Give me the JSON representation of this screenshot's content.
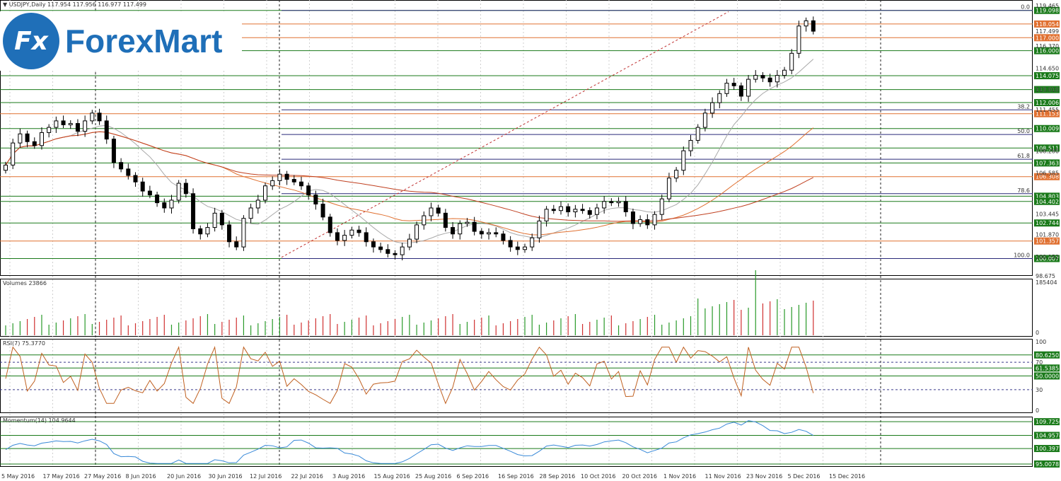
{
  "chart_data": {
    "type": "candlestick",
    "title": "USDJPY,Daily",
    "ohlc_header": "117.954 117.956 116.977 117.499",
    "x_labels": [
      "5 May 2016",
      "17 May 2016",
      "27 May 2016",
      "8 Jun 2016",
      "20 Jun 2016",
      "30 Jun 2016",
      "12 Jul 2016",
      "22 Jul 2016",
      "3 Aug 2016",
      "15 Aug 2016",
      "25 Aug 2016",
      "6 Sep 2016",
      "16 Sep 2016",
      "28 Sep 2016",
      "10 Oct 2016",
      "20 Oct 2016",
      "1 Nov 2016",
      "11 Nov 2016",
      "23 Nov 2016",
      "5 Dec 2016",
      "15 Dec 2016"
    ],
    "y_ticks": [
      "119.465",
      "117.499",
      "116.370",
      "114.650",
      "113.010",
      "111.455",
      "108.280",
      "106.585",
      "103.445",
      "101.870",
      "100.152",
      "98.675"
    ],
    "closes": [
      107.2,
      108.9,
      109.6,
      109.0,
      108.7,
      109.7,
      110.1,
      110.6,
      110.3,
      110.4,
      109.8,
      110.6,
      111.2,
      110.6,
      109.2,
      107.4,
      106.9,
      106.4,
      105.9,
      105.2,
      104.9,
      104.3,
      103.9,
      104.5,
      105.8,
      105.0,
      102.3,
      101.9,
      102.4,
      103.5,
      102.6,
      101.3,
      100.9,
      103.1,
      103.9,
      104.5,
      105.6,
      106.0,
      106.5,
      106.1,
      105.9,
      105.6,
      104.9,
      104.2,
      103.2,
      102.0,
      101.4,
      101.8,
      102.2,
      102.0,
      101.3,
      100.9,
      100.7,
      100.4,
      100.3,
      100.9,
      101.5,
      102.6,
      103.3,
      103.9,
      103.5,
      102.4,
      101.9,
      102.7,
      102.8,
      102.1,
      101.9,
      102.0,
      101.9,
      101.4,
      100.9,
      100.7,
      100.9,
      101.6,
      102.9,
      103.8,
      103.7,
      104.0,
      103.6,
      103.8,
      103.7,
      103.4,
      103.9,
      104.4,
      104.3,
      104.4,
      103.6,
      102.7,
      103.0,
      102.6,
      103.4,
      104.6,
      106.2,
      106.8,
      108.3,
      109.1,
      110.1,
      111.2,
      112.0,
      112.7,
      113.5,
      113.3,
      112.5,
      113.8,
      114.1,
      113.9,
      113.6,
      114.1,
      114.5,
      115.8,
      117.9,
      118.3,
      117.5
    ],
    "horizontal_levels": [
      {
        "value": "119.098",
        "color": "#1a7a1a"
      },
      {
        "value": "118.054",
        "color": "#e07030"
      },
      {
        "value": "117.000",
        "color": "#e07030"
      },
      {
        "value": "116.000",
        "color": "#1a7a1a"
      },
      {
        "value": "114.075",
        "color": "#1a7a1a"
      },
      {
        "value": "113.010",
        "color": "#1a7a1a"
      },
      {
        "value": "112.006",
        "color": "#1a7a1a"
      },
      {
        "value": "111.153",
        "color": "#e07030"
      },
      {
        "value": "110.009",
        "color": "#1a7a1a"
      },
      {
        "value": "108.511",
        "color": "#1a7a1a"
      },
      {
        "value": "107.363",
        "color": "#1a7a1a"
      },
      {
        "value": "106.308",
        "color": "#e07030"
      },
      {
        "value": "104.803",
        "color": "#1a7a1a"
      },
      {
        "value": "104.402",
        "color": "#1a7a1a"
      },
      {
        "value": "102.744",
        "color": "#1a7a1a"
      },
      {
        "value": "101.357",
        "color": "#e07030"
      },
      {
        "value": "100.007",
        "color": "#1a7a1a"
      }
    ],
    "fibonacci_levels": [
      "0.0",
      "38.2",
      "50.0",
      "61.8",
      "78.6",
      "100.0"
    ],
    "volumes": {
      "label": "Volumes 23866",
      "max_label": "185404",
      "zero_label": "0"
    },
    "rsi": {
      "label": "RSI(7) 75.3770",
      "axis": [
        "100",
        "70",
        "30",
        "0"
      ],
      "levels": [
        "80.6250",
        "61.5385",
        "50.0000"
      ]
    },
    "momentum": {
      "label": "Momentum(14) 104.9644",
      "levels": [
        "109.7250",
        "104.9574",
        "100.3972",
        "95.0078"
      ]
    }
  },
  "branding": {
    "logo_text": "ForexMart",
    "logo_mark": "Fx"
  },
  "colors": {
    "bull": "#ffffff",
    "bear": "#000000",
    "ma_fast": "#a8a8a8",
    "ma_mid": "#e07030",
    "ma_slow": "#c04020",
    "rsi_line": "#c06020",
    "momentum_line": "#3a8ad8",
    "volume_up": "#2a9a2a",
    "volume_down": "#d03030"
  }
}
